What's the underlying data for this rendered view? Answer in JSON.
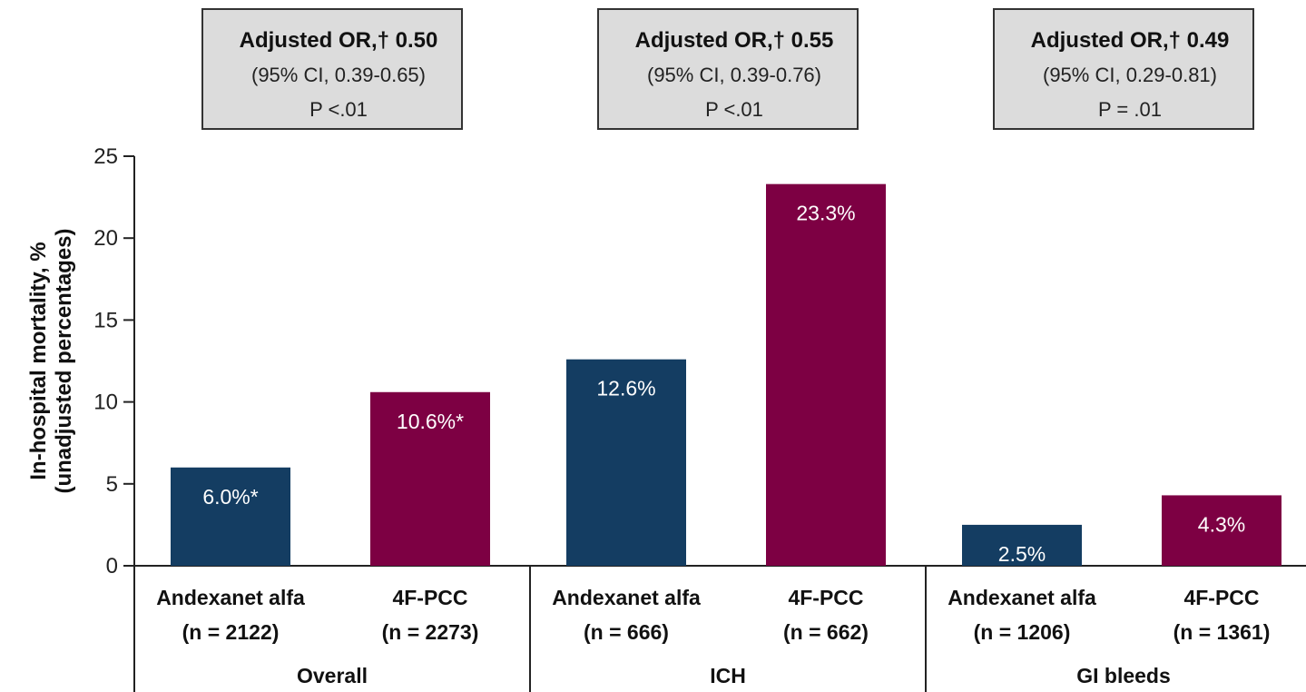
{
  "chart_data": {
    "type": "bar",
    "ylabel": [
      "In-hospital mortality, %",
      "(unadjusted percentages)"
    ],
    "ylim": [
      0,
      25
    ],
    "yticks": [
      0,
      5,
      10,
      15,
      20,
      25
    ],
    "grid": false,
    "colors": {
      "andexanet": "#143d62",
      "pcc": "#7d0043",
      "box_fill": "#dcdcdc",
      "box_stroke": "#333333"
    },
    "groups": [
      {
        "name": "Overall",
        "annotation": {
          "title": "Adjusted OR,† 0.50",
          "ci": "(95% CI, 0.39-0.65)",
          "p": "P <.01"
        },
        "bars": [
          {
            "series": "andexanet",
            "line1": "Andexanet alfa",
            "line2": "(n = 2122)",
            "value": 6.0,
            "label": "6.0%*"
          },
          {
            "series": "pcc",
            "line1": "4F-PCC",
            "line2": "(n = 2273)",
            "value": 10.6,
            "label": "10.6%*"
          }
        ]
      },
      {
        "name": "ICH",
        "annotation": {
          "title": "Adjusted OR,† 0.55",
          "ci": "(95% CI, 0.39-0.76)",
          "p": "P <.01"
        },
        "bars": [
          {
            "series": "andexanet",
            "line1": "Andexanet alfa",
            "line2": "(n = 666)",
            "value": 12.6,
            "label": "12.6%"
          },
          {
            "series": "pcc",
            "line1": "4F-PCC",
            "line2": "(n = 662)",
            "value": 23.3,
            "label": "23.3%"
          }
        ]
      },
      {
        "name": "GI bleeds",
        "annotation": {
          "title": "Adjusted OR,† 0.49",
          "ci": "(95% CI, 0.29-0.81)",
          "p": "P = .01"
        },
        "bars": [
          {
            "series": "andexanet",
            "line1": "Andexanet alfa",
            "line2": "(n = 1206)",
            "value": 2.5,
            "label": "2.5%"
          },
          {
            "series": "pcc",
            "line1": "4F-PCC",
            "line2": "(n = 1361)",
            "value": 4.3,
            "label": "4.3%"
          }
        ]
      }
    ]
  }
}
